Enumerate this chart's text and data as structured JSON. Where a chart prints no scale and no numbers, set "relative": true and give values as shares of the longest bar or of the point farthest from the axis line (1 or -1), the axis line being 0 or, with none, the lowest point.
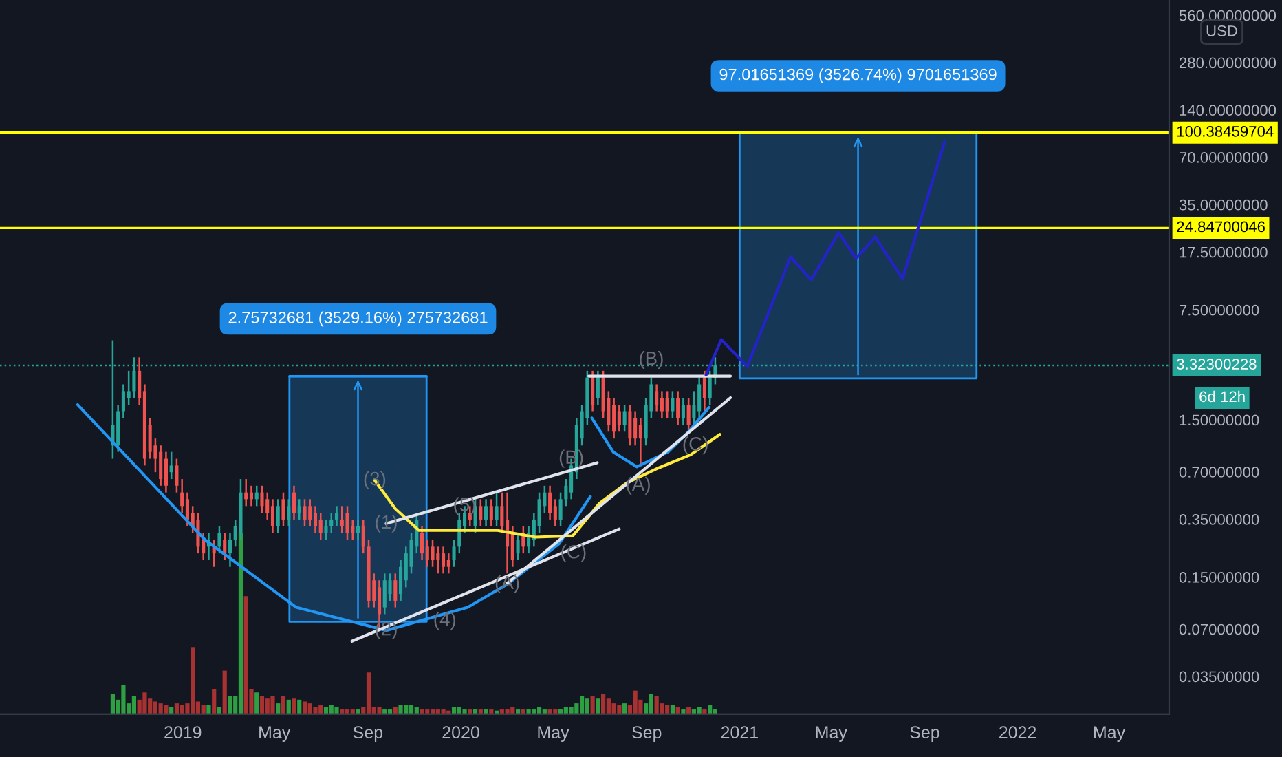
{
  "chart_data": [
    {
      "type": "candlestick",
      "log": true,
      "ylabel": "USD",
      "x": [
        "2018-10-01",
        "2018-10-08",
        "2018-10-15",
        "2018-10-22",
        "2018-10-29",
        "2018-11-05",
        "2018-11-12",
        "2018-11-19",
        "2018-11-26",
        "2018-12-03",
        "2018-12-10",
        "2018-12-17",
        "2018-12-24",
        "2018-12-31",
        "2019-01-07",
        "2019-01-14",
        "2019-01-21",
        "2019-01-28",
        "2019-02-04",
        "2019-02-11",
        "2019-02-18",
        "2019-02-25",
        "2019-03-04",
        "2019-03-11",
        "2019-03-18",
        "2019-03-25",
        "2019-04-01",
        "2019-04-08",
        "2019-04-15",
        "2019-04-22",
        "2019-04-29",
        "2019-05-06",
        "2019-05-13",
        "2019-05-20",
        "2019-05-27",
        "2019-06-03",
        "2019-06-10",
        "2019-06-17",
        "2019-06-24",
        "2019-07-01",
        "2019-07-08",
        "2019-07-15",
        "2019-07-22",
        "2019-07-29",
        "2019-08-05",
        "2019-08-12",
        "2019-08-19",
        "2019-08-26",
        "2019-09-02",
        "2019-09-09",
        "2019-09-16",
        "2019-09-23",
        "2019-09-30",
        "2019-10-07",
        "2019-10-14",
        "2019-10-21",
        "2019-10-28",
        "2019-11-04",
        "2019-11-11",
        "2019-11-18",
        "2019-11-25",
        "2019-12-02",
        "2019-12-09",
        "2019-12-16",
        "2019-12-23",
        "2019-12-30",
        "2020-01-06",
        "2020-01-13",
        "2020-01-20",
        "2020-01-27",
        "2020-02-03",
        "2020-02-10",
        "2020-02-17",
        "2020-02-24",
        "2020-03-02",
        "2020-03-09",
        "2020-03-16",
        "2020-03-23",
        "2020-03-30",
        "2020-04-06",
        "2020-04-13",
        "2020-04-20",
        "2020-04-27",
        "2020-05-04",
        "2020-05-11",
        "2020-05-18",
        "2020-05-25",
        "2020-06-01",
        "2020-06-08",
        "2020-06-15",
        "2020-06-22",
        "2020-06-29",
        "2020-07-06",
        "2020-07-13",
        "2020-07-20",
        "2020-07-27",
        "2020-08-03",
        "2020-08-10",
        "2020-08-17",
        "2020-08-24",
        "2020-08-31",
        "2020-09-07",
        "2020-09-14",
        "2020-09-21",
        "2020-09-28",
        "2020-10-05",
        "2020-10-12",
        "2020-10-19",
        "2020-10-26",
        "2020-11-02",
        "2020-11-09",
        "2020-11-16",
        "2020-11-23",
        "2020-11-30"
      ],
      "ohlc": [
        [
          1.03,
          4.8,
          0.848,
          1.39
        ],
        [
          1.03,
          1.87,
          0.937,
          1.7
        ],
        [
          1.7,
          2.52,
          1.54,
          2.28
        ],
        [
          2.07,
          3.07,
          1.87,
          2.28
        ],
        [
          2.28,
          3.74,
          2.07,
          3.07
        ],
        [
          3.07,
          3.74,
          1.87,
          2.07
        ],
        [
          2.28,
          2.52,
          0.768,
          0.848
        ],
        [
          1.39,
          1.54,
          0.848,
          0.937
        ],
        [
          1.03,
          1.14,
          0.696,
          0.848
        ],
        [
          0.937,
          1.03,
          0.571,
          0.63
        ],
        [
          0.848,
          0.937,
          0.517,
          0.571
        ],
        [
          0.696,
          0.937,
          0.63,
          0.768
        ],
        [
          0.768,
          0.848,
          0.517,
          0.571
        ],
        [
          0.517,
          0.63,
          0.384,
          0.424
        ],
        [
          0.469,
          0.517,
          0.315,
          0.348
        ],
        [
          0.384,
          0.424,
          0.286,
          0.315
        ],
        [
          0.348,
          0.384,
          0.212,
          0.234
        ],
        [
          0.259,
          0.286,
          0.192,
          0.212
        ],
        [
          0.234,
          0.286,
          0.192,
          0.259
        ],
        [
          0.234,
          0.259,
          0.174,
          0.212
        ],
        [
          0.234,
          0.315,
          0.212,
          0.286
        ],
        [
          0.259,
          0.286,
          0.192,
          0.212
        ],
        [
          0.212,
          0.286,
          0.174,
          0.259
        ],
        [
          0.259,
          0.348,
          0.234,
          0.315
        ],
        [
          0.286,
          0.63,
          0.259,
          0.517
        ],
        [
          0.517,
          0.63,
          0.424,
          0.469
        ],
        [
          0.517,
          0.571,
          0.424,
          0.469
        ],
        [
          0.469,
          0.571,
          0.424,
          0.517
        ],
        [
          0.517,
          0.571,
          0.384,
          0.424
        ],
        [
          0.469,
          0.517,
          0.348,
          0.384
        ],
        [
          0.424,
          0.469,
          0.286,
          0.315
        ],
        [
          0.315,
          0.469,
          0.286,
          0.424
        ],
        [
          0.469,
          0.517,
          0.315,
          0.348
        ],
        [
          0.348,
          0.469,
          0.315,
          0.424
        ],
        [
          0.517,
          0.571,
          0.348,
          0.384
        ],
        [
          0.384,
          0.469,
          0.348,
          0.424
        ],
        [
          0.424,
          0.469,
          0.315,
          0.348
        ],
        [
          0.424,
          0.469,
          0.315,
          0.348
        ],
        [
          0.384,
          0.424,
          0.286,
          0.315
        ],
        [
          0.348,
          0.384,
          0.259,
          0.286
        ],
        [
          0.286,
          0.348,
          0.259,
          0.315
        ],
        [
          0.315,
          0.384,
          0.286,
          0.348
        ],
        [
          0.348,
          0.424,
          0.315,
          0.384
        ],
        [
          0.348,
          0.424,
          0.286,
          0.315
        ],
        [
          0.384,
          0.424,
          0.259,
          0.286
        ],
        [
          0.315,
          0.348,
          0.259,
          0.286
        ],
        [
          0.286,
          0.348,
          0.259,
          0.315
        ],
        [
          0.315,
          0.348,
          0.212,
          0.234
        ],
        [
          0.234,
          0.259,
          0.0962,
          0.106
        ],
        [
          0.143,
          0.158,
          0.0962,
          0.106
        ],
        [
          0.129,
          0.143,
          0.0714,
          0.0871
        ],
        [
          0.0962,
          0.158,
          0.0871,
          0.143
        ],
        [
          0.117,
          0.158,
          0.106,
          0.143
        ],
        [
          0.143,
          0.158,
          0.0962,
          0.106
        ],
        [
          0.117,
          0.192,
          0.106,
          0.174
        ],
        [
          0.143,
          0.234,
          0.129,
          0.212
        ],
        [
          0.174,
          0.286,
          0.158,
          0.259
        ],
        [
          0.234,
          0.384,
          0.212,
          0.348
        ],
        [
          0.286,
          0.315,
          0.192,
          0.212
        ],
        [
          0.234,
          0.259,
          0.174,
          0.192
        ],
        [
          0.234,
          0.259,
          0.174,
          0.192
        ],
        [
          0.212,
          0.234,
          0.158,
          0.192
        ],
        [
          0.212,
          0.234,
          0.158,
          0.174
        ],
        [
          0.192,
          0.212,
          0.158,
          0.174
        ],
        [
          0.192,
          0.259,
          0.174,
          0.234
        ],
        [
          0.234,
          0.384,
          0.212,
          0.348
        ],
        [
          0.315,
          0.424,
          0.286,
          0.384
        ],
        [
          0.384,
          0.424,
          0.315,
          0.348
        ],
        [
          0.315,
          0.469,
          0.286,
          0.424
        ],
        [
          0.424,
          0.469,
          0.315,
          0.348
        ],
        [
          0.348,
          0.469,
          0.315,
          0.424
        ],
        [
          0.424,
          0.469,
          0.315,
          0.348
        ],
        [
          0.348,
          0.517,
          0.315,
          0.424
        ],
        [
          0.424,
          0.517,
          0.286,
          0.315
        ],
        [
          0.348,
          0.517,
          0.158,
          0.234
        ],
        [
          0.286,
          0.315,
          0.174,
          0.192
        ],
        [
          0.212,
          0.286,
          0.192,
          0.259
        ],
        [
          0.286,
          0.315,
          0.212,
          0.234
        ],
        [
          0.234,
          0.315,
          0.212,
          0.286
        ],
        [
          0.259,
          0.384,
          0.234,
          0.348
        ],
        [
          0.315,
          0.517,
          0.286,
          0.469
        ],
        [
          0.424,
          0.571,
          0.384,
          0.517
        ],
        [
          0.517,
          0.571,
          0.348,
          0.384
        ],
        [
          0.424,
          0.469,
          0.315,
          0.348
        ],
        [
          0.348,
          0.517,
          0.315,
          0.469
        ],
        [
          0.469,
          0.63,
          0.424,
          0.571
        ],
        [
          0.517,
          0.848,
          0.469,
          0.768
        ],
        [
          0.696,
          1.54,
          0.63,
          1.39
        ],
        [
          1.14,
          1.87,
          1.03,
          1.7
        ],
        [
          1.54,
          3.07,
          1.39,
          2.78
        ],
        [
          2.78,
          3.07,
          1.7,
          1.87
        ],
        [
          2.07,
          3.07,
          1.87,
          2.78
        ],
        [
          2.78,
          3.07,
          1.54,
          1.7
        ],
        [
          2.07,
          2.28,
          1.26,
          1.39
        ],
        [
          1.87,
          2.07,
          1.14,
          1.26
        ],
        [
          1.7,
          1.87,
          1.26,
          1.39
        ],
        [
          1.39,
          1.87,
          1.26,
          1.7
        ],
        [
          1.7,
          1.87,
          1.03,
          1.14
        ],
        [
          1.54,
          1.7,
          1.03,
          1.14
        ],
        [
          1.39,
          1.54,
          0.768,
          1.14
        ],
        [
          1.14,
          2.07,
          1.03,
          1.87
        ],
        [
          1.7,
          2.78,
          1.54,
          2.52
        ],
        [
          2.28,
          2.52,
          1.7,
          1.87
        ],
        [
          2.07,
          2.28,
          1.54,
          1.7
        ],
        [
          2.07,
          2.28,
          1.54,
          1.7
        ],
        [
          1.7,
          2.28,
          1.54,
          2.07
        ],
        [
          2.07,
          2.28,
          1.39,
          1.54
        ],
        [
          1.54,
          2.07,
          1.39,
          1.87
        ],
        [
          1.87,
          2.07,
          1.26,
          1.39
        ],
        [
          1.54,
          2.28,
          1.39,
          1.87
        ],
        [
          1.7,
          2.78,
          1.54,
          2.52
        ],
        [
          2.78,
          3.07,
          1.7,
          2.07
        ],
        [
          2.07,
          3.07,
          1.87,
          2.78
        ],
        [
          2.78,
          3.74,
          2.52,
          3.32
        ]
      ],
      "colors": [
        "#26a69a",
        "#26a69a",
        "#26a69a",
        "#26a69a",
        "#26a69a",
        "#ef5350",
        "#ef5350",
        "#ef5350",
        "#ef5350",
        "#ef5350",
        "#ef5350",
        "#26a69a",
        "#ef5350",
        "#ef5350",
        "#ef5350",
        "#ef5350",
        "#ef5350",
        "#ef5350",
        "#26a69a",
        "#ef5350",
        "#26a69a",
        "#ef5350",
        "#26a69a",
        "#26a69a",
        "#26a69a",
        "#ef5350",
        "#ef5350",
        "#26a69a",
        "#ef5350",
        "#ef5350",
        "#ef5350",
        "#26a69a",
        "#ef5350",
        "#26a69a",
        "#ef5350",
        "#26a69a",
        "#ef5350",
        "#ef5350",
        "#ef5350",
        "#ef5350",
        "#26a69a",
        "#26a69a",
        "#26a69a",
        "#ef5350",
        "#ef5350",
        "#ef5350",
        "#26a69a",
        "#ef5350",
        "#ef5350",
        "#ef5350",
        "#ef5350",
        "#26a69a",
        "#26a69a",
        "#ef5350",
        "#26a69a",
        "#26a69a",
        "#26a69a",
        "#26a69a",
        "#ef5350",
        "#ef5350",
        "#ef5350",
        "#ef5350",
        "#ef5350",
        "#ef5350",
        "#26a69a",
        "#26a69a",
        "#26a69a",
        "#ef5350",
        "#26a69a",
        "#ef5350",
        "#26a69a",
        "#ef5350",
        "#26a69a",
        "#ef5350",
        "#ef5350",
        "#ef5350",
        "#26a69a",
        "#ef5350",
        "#26a69a",
        "#26a69a",
        "#26a69a",
        "#26a69a",
        "#ef5350",
        "#ef5350",
        "#26a69a",
        "#26a69a",
        "#26a69a",
        "#26a69a",
        "#26a69a",
        "#26a69a",
        "#ef5350",
        "#26a69a",
        "#ef5350",
        "#ef5350",
        "#ef5350",
        "#ef5350",
        "#26a69a",
        "#ef5350",
        "#ef5350",
        "#ef5350",
        "#26a69a",
        "#26a69a",
        "#ef5350",
        "#ef5350",
        "#ef5350",
        "#26a69a",
        "#ef5350",
        "#26a69a",
        "#ef5350",
        "#26a69a",
        "#26a69a",
        "#ef5350",
        "#26a69a",
        "#26a69a"
      ],
      "series": [
        {
          "type": "line",
          "color": "#2196f3",
          "x": [
            "2018-08-16",
            "2019-01-30",
            "2019-05-30",
            "2019-09-25",
            "2020-01-10",
            "2020-03-02",
            "2020-05-09",
            "2020-06-19"
          ],
          "values": [
            1.87,
            0.259,
            0.0962,
            0.0686,
            0.0962,
            0.135,
            0.244,
            0.487
          ]
        },
        {
          "type": "line",
          "color": "#2196f3",
          "x": [
            "2020-06-21",
            "2020-07-19",
            "2020-08-19",
            "2020-09-29",
            "2020-10-26",
            "2020-11-22"
          ],
          "values": [
            1.54,
            0.937,
            0.753,
            0.937,
            1.26,
            1.8
          ]
        },
        {
          "type": "line",
          "color": "#ffeb3b",
          "x": [
            "2019-09-10",
            "2019-10-07",
            "2019-11-07",
            "2019-12-18",
            "2020-02-18",
            "2020-04-08",
            "2020-05-27",
            "2020-07-01",
            "2020-08-06",
            "2020-09-16",
            "2020-10-29",
            "2020-12-06"
          ],
          "values": [
            0.618,
            0.408,
            0.297,
            0.297,
            0.297,
            0.269,
            0.274,
            0.441,
            0.595,
            0.739,
            0.9,
            1.21
          ]
        },
        {
          "type": "line",
          "color": "#e0e3eb",
          "x": [
            "2019-09-25",
            "2020-06-28"
          ],
          "values": [
            0.328,
            0.799
          ]
        },
        {
          "type": "line",
          "color": "#e0e3eb",
          "x": [
            "2019-08-11",
            "2020-07-27"
          ],
          "values": [
            0.0586,
            0.303
          ]
        },
        {
          "type": "line",
          "color": "#e0e3eb",
          "x": [
            "2020-03-02",
            "2020-12-20"
          ],
          "values": [
            0.137,
            2.07
          ]
        },
        {
          "type": "line",
          "color": "#e0e3eb",
          "x": [
            "2020-06-17",
            "2020-12-20"
          ],
          "values": [
            2.84,
            2.84
          ]
        },
        {
          "type": "line",
          "color": "#2323c8",
          "x": [
            "2020-11-18",
            "2020-12-08",
            "2021-01-11",
            "2021-03-09",
            "2021-04-05",
            "2021-05-11",
            "2021-06-03",
            "2021-06-28",
            "2021-08-03",
            "2021-09-27"
          ],
          "values": [
            2.89,
            4.85,
            3.27,
            16.3,
            11.6,
            23.2,
            15.9,
            21.8,
            11.8,
            87.3
          ]
        },
        {
          "type": "line",
          "name": "2.75732681 (3529.16%) 275732681",
          "color": "#2196f3",
          "x": [
            "2019-05-21",
            "2019-11-17"
          ],
          "values": [
            2.835,
            2.835
          ],
          "lower": [
            0.078,
            0.078
          ],
          "upper": [
            2.835,
            2.835
          ]
        },
        {
          "type": "line",
          "name": "97.01651369 (3526.74%) 9701651369",
          "color": "#2196f3",
          "x": [
            "2021-01-01",
            "2021-11-08"
          ],
          "values": [
            99.77,
            99.77
          ],
          "lower": [
            2.75,
            2.75
          ],
          "upper": [
            99.77,
            99.77
          ]
        }
      ],
      "ref_lines": [
        {
          "axis": "y",
          "value": 100.38459704,
          "label": "100.38459704",
          "color": "#ffff00",
          "line_style": "solid"
        },
        {
          "axis": "y",
          "value": 24.84700046,
          "label": "24.84700046",
          "color": "#ffff00",
          "line_style": "solid"
        },
        {
          "axis": "y",
          "value": 3.32300228,
          "label": "3.32300228",
          "color": "#26a69a",
          "line_style": "dotted"
        }
      ],
      "annotations": [
        {
          "text": "(1)",
          "x": "2019-09-25",
          "y": 0.328
        },
        {
          "text": "(2)",
          "x": "2019-09-25",
          "y": 0.0686
        },
        {
          "text": "(3)",
          "x": "2019-09-10",
          "y": 0.618
        },
        {
          "text": "(4)",
          "x": "2019-12-11",
          "y": 0.0789
        },
        {
          "text": "(5)",
          "x": "2020-01-06",
          "y": 0.424
        },
        {
          "text": "(A)",
          "x": "2020-03-02",
          "y": 0.135
        },
        {
          "text": "(B)",
          "x": "2020-05-25",
          "y": 0.848
        },
        {
          "text": "(C)",
          "x": "2020-05-28",
          "y": 0.212
        },
        {
          "text": "(A)",
          "x": "2020-08-21",
          "y": 0.571
        },
        {
          "text": "(B)",
          "x": "2020-09-07",
          "y": 3.6
        },
        {
          "text": "(C)",
          "x": "2020-11-04",
          "y": 1.03
        },
        "6d 12h"
      ],
      "xlim": [
        "2018-05-06",
        "2022-07-19"
      ],
      "xticks": [
        {
          "value": "2019-01-01",
          "label": "2019"
        },
        {
          "value": "2019-05-01",
          "label": "May"
        },
        {
          "value": "2019-09-01",
          "label": "Sep"
        },
        {
          "value": "2020-01-01",
          "label": "2020"
        },
        {
          "value": "2020-05-01",
          "label": "May"
        },
        {
          "value": "2020-09-01",
          "label": "Sep"
        },
        {
          "value": "2021-01-01",
          "label": "2021"
        },
        {
          "value": "2021-05-01",
          "label": "May"
        },
        {
          "value": "2021-09-01",
          "label": "Sep"
        },
        {
          "value": "2022-01-01",
          "label": "2022"
        },
        {
          "value": "2022-05-01",
          "label": "May"
        }
      ],
      "ylim": [
        0.0201,
        700
      ],
      "yticks": [
        {
          "value": 0.035,
          "label": "0.03500000"
        },
        {
          "value": 0.07,
          "label": "0.07000000"
        },
        {
          "value": 0.15,
          "label": "0.15000000"
        },
        {
          "value": 0.35,
          "label": "0.35000000"
        },
        {
          "value": 0.7,
          "label": "0.70000000"
        },
        {
          "value": 1.5,
          "label": "1.50000000"
        },
        {
          "value": 7.5,
          "label": "7.50000000"
        },
        {
          "value": 17.5,
          "label": "17.50000000"
        },
        {
          "value": 35,
          "label": "35.00000000"
        },
        {
          "value": 70,
          "label": "70.00000000"
        },
        {
          "value": 140,
          "label": "140.00000000"
        },
        {
          "value": 280,
          "label": "280.00000000"
        },
        {
          "value": 560,
          "label": "560.00000000"
        }
      ]
    },
    {
      "type": "bar",
      "relative": true,
      "tick_labels": false,
      "x": [
        "2018-10-01",
        "2018-10-08",
        "2018-10-15",
        "2018-10-22",
        "2018-10-29",
        "2018-11-05",
        "2018-11-12",
        "2018-11-19",
        "2018-11-26",
        "2018-12-03",
        "2018-12-10",
        "2018-12-17",
        "2018-12-24",
        "2018-12-31",
        "2019-01-07",
        "2019-01-14",
        "2019-01-21",
        "2019-01-28",
        "2019-02-04",
        "2019-02-11",
        "2019-02-18",
        "2019-02-25",
        "2019-03-04",
        "2019-03-11",
        "2019-03-18",
        "2019-03-25",
        "2019-04-01",
        "2019-04-08",
        "2019-04-15",
        "2019-04-22",
        "2019-04-29",
        "2019-05-06",
        "2019-05-13",
        "2019-05-20",
        "2019-05-27",
        "2019-06-03",
        "2019-06-10",
        "2019-06-17",
        "2019-06-24",
        "2019-07-01",
        "2019-07-08",
        "2019-07-15",
        "2019-07-22",
        "2019-07-29",
        "2019-08-05",
        "2019-08-12",
        "2019-08-19",
        "2019-08-26",
        "2019-09-02",
        "2019-09-09",
        "2019-09-16",
        "2019-09-23",
        "2019-09-30",
        "2019-10-07",
        "2019-10-14",
        "2019-10-21",
        "2019-10-28",
        "2019-11-04",
        "2019-11-11",
        "2019-11-18",
        "2019-11-25",
        "2019-12-02",
        "2019-12-09",
        "2019-12-16",
        "2019-12-23",
        "2019-12-30",
        "2020-01-06",
        "2020-01-13",
        "2020-01-20",
        "2020-01-27",
        "2020-02-03",
        "2020-02-10",
        "2020-02-17",
        "2020-02-24",
        "2020-03-02",
        "2020-03-09",
        "2020-03-16",
        "2020-03-23",
        "2020-03-30",
        "2020-04-06",
        "2020-04-13",
        "2020-04-20",
        "2020-04-27",
        "2020-05-04",
        "2020-05-11",
        "2020-05-18",
        "2020-05-25",
        "2020-06-01",
        "2020-06-08",
        "2020-06-15",
        "2020-06-22",
        "2020-06-29",
        "2020-07-06",
        "2020-07-13",
        "2020-07-20",
        "2020-07-27",
        "2020-08-03",
        "2020-08-10",
        "2020-08-17",
        "2020-08-24",
        "2020-08-31",
        "2020-09-07",
        "2020-09-14",
        "2020-09-21",
        "2020-09-28",
        "2020-10-05",
        "2020-10-12",
        "2020-10-19",
        "2020-10-26",
        "2020-11-02",
        "2020-11-09",
        "2020-11-16",
        "2020-11-23",
        "2020-11-30"
      ],
      "values": [
        0.11,
        0.08,
        0.16,
        0.06,
        0.1,
        0.08,
        0.12,
        0.09,
        0.07,
        0.06,
        0.05,
        0.04,
        0.06,
        0.05,
        0.06,
        0.37,
        0.07,
        0.05,
        0.05,
        0.14,
        0.04,
        0.24,
        0.1,
        0.1,
        1,
        0.65,
        0.14,
        0.12,
        0.1,
        0.09,
        0.1,
        0.06,
        0.1,
        0.08,
        0.09,
        0.08,
        0.07,
        0.06,
        0.04,
        0.05,
        0.04,
        0.05,
        0.04,
        0.03,
        0.03,
        0.03,
        0.03,
        0.04,
        0.23,
        0.04,
        0.04,
        0.03,
        0.03,
        0.04,
        0.05,
        0.05,
        0.05,
        0.04,
        0.03,
        0.03,
        0.03,
        0.03,
        0.03,
        0.02,
        0.04,
        0.04,
        0.03,
        0.03,
        0.03,
        0.03,
        0.03,
        0.03,
        0.02,
        0.03,
        0.03,
        0.04,
        0.03,
        0.03,
        0.03,
        0.03,
        0.04,
        0.03,
        0.03,
        0.03,
        0.03,
        0.04,
        0.04,
        0.06,
        0.1,
        0.09,
        0.1,
        0.09,
        0.11,
        0.09,
        0.06,
        0.05,
        0.06,
        0.05,
        0.13,
        0.08,
        0.06,
        0.11,
        0.1,
        0.06,
        0.05,
        0.05,
        0.04,
        0.03,
        0.04,
        0.03,
        0.04,
        0.03,
        0.05,
        0.03
      ],
      "colors": [
        "#2ea043",
        "#2ea043",
        "#2ea043",
        "#2ea043",
        "#2ea043",
        "#a83232",
        "#a83232",
        "#a83232",
        "#a83232",
        "#a83232",
        "#a83232",
        "#2ea043",
        "#a83232",
        "#a83232",
        "#a83232",
        "#a83232",
        "#a83232",
        "#a83232",
        "#2ea043",
        "#a83232",
        "#2ea043",
        "#a83232",
        "#2ea043",
        "#2ea043",
        "#2ea043",
        "#a83232",
        "#a83232",
        "#2ea043",
        "#a83232",
        "#a83232",
        "#a83232",
        "#2ea043",
        "#a83232",
        "#2ea043",
        "#a83232",
        "#2ea043",
        "#a83232",
        "#a83232",
        "#a83232",
        "#a83232",
        "#2ea043",
        "#2ea043",
        "#2ea043",
        "#a83232",
        "#a83232",
        "#a83232",
        "#2ea043",
        "#a83232",
        "#a83232",
        "#a83232",
        "#a83232",
        "#2ea043",
        "#2ea043",
        "#a83232",
        "#2ea043",
        "#2ea043",
        "#2ea043",
        "#2ea043",
        "#a83232",
        "#a83232",
        "#a83232",
        "#a83232",
        "#a83232",
        "#a83232",
        "#2ea043",
        "#2ea043",
        "#2ea043",
        "#a83232",
        "#2ea043",
        "#a83232",
        "#2ea043",
        "#a83232",
        "#2ea043",
        "#a83232",
        "#a83232",
        "#a83232",
        "#2ea043",
        "#a83232",
        "#2ea043",
        "#2ea043",
        "#2ea043",
        "#2ea043",
        "#a83232",
        "#a83232",
        "#2ea043",
        "#2ea043",
        "#2ea043",
        "#2ea043",
        "#2ea043",
        "#2ea043",
        "#a83232",
        "#2ea043",
        "#a83232",
        "#a83232",
        "#a83232",
        "#a83232",
        "#2ea043",
        "#a83232",
        "#a83232",
        "#a83232",
        "#2ea043",
        "#2ea043",
        "#a83232",
        "#a83232",
        "#a83232",
        "#2ea043",
        "#a83232",
        "#2ea043",
        "#a83232",
        "#2ea043",
        "#2ea043",
        "#a83232",
        "#2ea043",
        "#2ea043"
      ],
      "xlim": [
        "2018-05-06",
        "2022-07-19"
      ]
    }
  ]
}
